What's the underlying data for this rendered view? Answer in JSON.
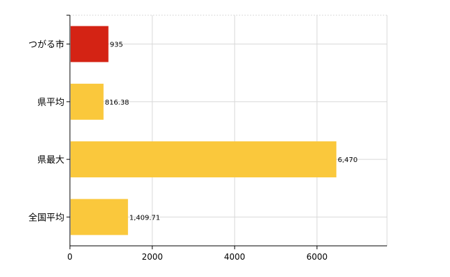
{
  "chart_data": {
    "type": "bar",
    "orientation": "horizontal",
    "categories": [
      "つがる市",
      "県平均",
      "県最大",
      "全国平均"
    ],
    "values": [
      935,
      816.38,
      6470,
      1409.71
    ],
    "value_labels": [
      "935",
      "816.38",
      "6,470",
      "1,409.71"
    ],
    "colors": [
      "#d42314",
      "#fac83c",
      "#fac83c",
      "#fac83c"
    ],
    "xlim": [
      0,
      7700
    ],
    "xticks": [
      0,
      2000,
      4000,
      6000
    ],
    "xtick_labels": [
      "0",
      "2000",
      "4000",
      "6000"
    ],
    "grid": true,
    "title": "",
    "xlabel": "",
    "ylabel": ""
  }
}
